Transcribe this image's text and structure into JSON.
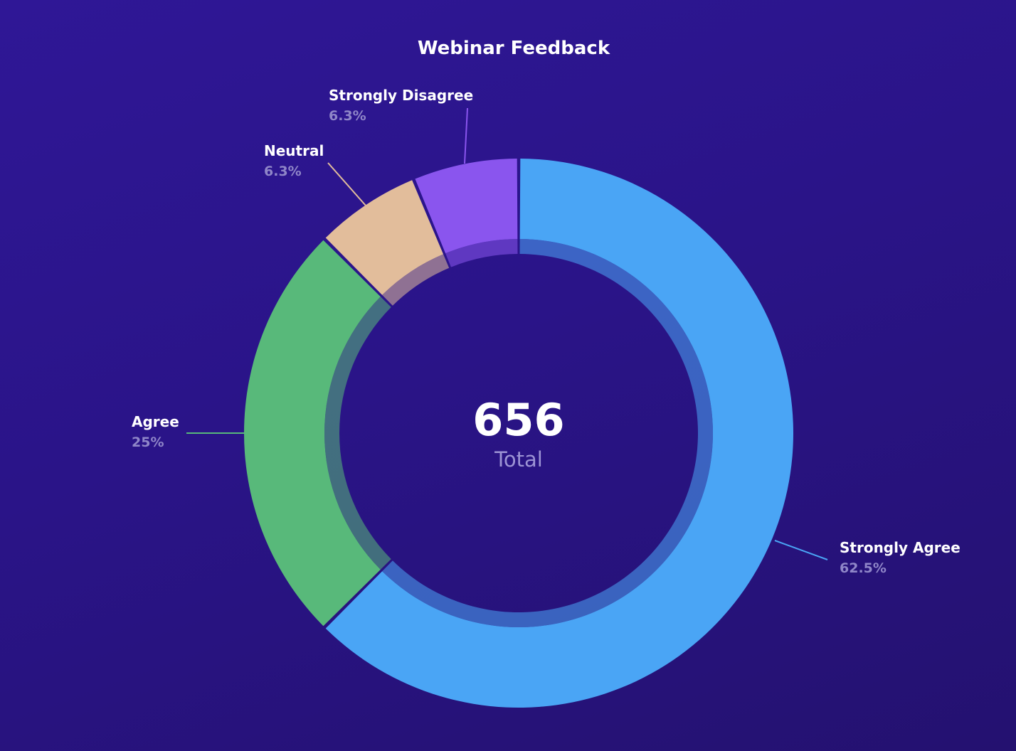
{
  "chart_data": {
    "type": "pie",
    "title": "Webinar Feedback",
    "total": {
      "value": "656",
      "label": "Total"
    },
    "slices": [
      {
        "label": "Strongly Agree",
        "percent_text": "62.5%",
        "value": 62.5,
        "color": "#4aa5f5"
      },
      {
        "label": "Agree",
        "percent_text": "25%",
        "value": 25,
        "color": "#58b97a"
      },
      {
        "label": "Neutral",
        "percent_text": "6.3%",
        "value": 6.25,
        "color": "#e2bd9b"
      },
      {
        "label": "Strongly Disagree",
        "percent_text": "6.3%",
        "value": 6.25,
        "color": "#8a55ee"
      }
    ],
    "start": "top",
    "direction": "clockwise",
    "legend": "none"
  }
}
